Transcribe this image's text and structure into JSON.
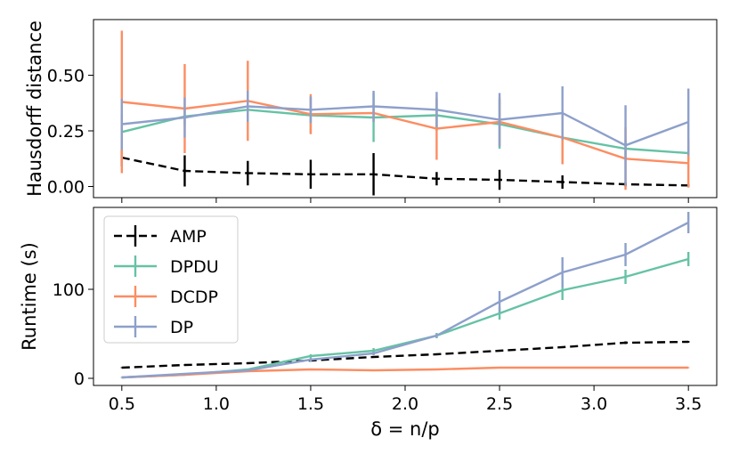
{
  "chart_data": [
    {
      "type": "line",
      "ylabel": "Hausdorff distance",
      "xlabel": "",
      "x": [
        0.5,
        0.833,
        1.167,
        1.5,
        1.833,
        2.167,
        2.5,
        2.833,
        3.167,
        3.5
      ],
      "xlim": [
        0.35,
        3.65
      ],
      "ylim": [
        -0.05,
        0.75
      ],
      "yticks": [
        0.0,
        0.25,
        0.5
      ],
      "ytick_labels": [
        "0.00",
        "0.25",
        "0.50"
      ],
      "series": [
        {
          "name": "AMP",
          "color": "#000000",
          "dash": true,
          "values": [
            0.13,
            0.07,
            0.06,
            0.055,
            0.055,
            0.035,
            0.03,
            0.02,
            0.01,
            0.005
          ],
          "err": [
            0.04,
            0.07,
            0.055,
            0.065,
            0.095,
            0.03,
            0.045,
            0.03,
            0.01,
            0.005
          ]
        },
        {
          "name": "DPDU",
          "color": "#66c2a5",
          "dash": false,
          "values": [
            0.245,
            0.315,
            0.345,
            0.32,
            0.31,
            0.32,
            0.28,
            0.22,
            0.17,
            0.15
          ],
          "err": [
            0.08,
            0.04,
            0.04,
            0.08,
            0.11,
            0.07,
            0.11,
            0.12,
            0.04,
            0.03
          ]
        },
        {
          "name": "DCDP",
          "color": "#fc8d62",
          "dash": false,
          "values": [
            0.38,
            0.35,
            0.385,
            0.325,
            0.33,
            0.26,
            0.29,
            0.22,
            0.125,
            0.105
          ],
          "err": [
            0.32,
            0.2,
            0.18,
            0.09,
            0.04,
            0.14,
            0.11,
            0.12,
            0.14,
            0.11
          ]
        },
        {
          "name": "DP",
          "color": "#8da0cb",
          "dash": false,
          "values": [
            0.28,
            0.31,
            0.36,
            0.345,
            0.36,
            0.345,
            0.3,
            0.33,
            0.185,
            0.29
          ],
          "err": [
            0.115,
            0.09,
            0.07,
            0.06,
            0.07,
            0.08,
            0.12,
            0.12,
            0.18,
            0.15
          ]
        }
      ]
    },
    {
      "type": "line",
      "ylabel": "Runtime (s)",
      "xlabel": "δ = n/p",
      "x": [
        0.5,
        0.833,
        1.167,
        1.5,
        1.833,
        2.167,
        2.5,
        2.833,
        3.167,
        3.5
      ],
      "xlim": [
        0.35,
        3.65
      ],
      "ylim": [
        -8,
        192
      ],
      "xticks": [
        0.5,
        1.0,
        1.5,
        2.0,
        2.5,
        3.0,
        3.5
      ],
      "xtick_labels": [
        "0.5",
        "1.0",
        "1.5",
        "2.0",
        "2.5",
        "3.0",
        "3.5"
      ],
      "yticks": [
        0,
        100
      ],
      "ytick_labels": [
        "0",
        "100"
      ],
      "legend": "upper-left",
      "series": [
        {
          "name": "AMP",
          "color": "#000000",
          "dash": true,
          "values": [
            12,
            15,
            17,
            20,
            24,
            27,
            31,
            35,
            40,
            41
          ],
          "err": [
            0.5,
            0.5,
            0.5,
            0.5,
            0.5,
            0.5,
            0.5,
            1.0,
            1.5,
            1.0
          ]
        },
        {
          "name": "DPDU",
          "color": "#66c2a5",
          "dash": false,
          "values": [
            1,
            4,
            10,
            25,
            31,
            48,
            73,
            99,
            114,
            134
          ],
          "err": [
            0.5,
            0.5,
            1.0,
            2.0,
            3.0,
            3.0,
            7.0,
            11.0,
            8.0,
            8.0
          ]
        },
        {
          "name": "DCDP",
          "color": "#fc8d62",
          "dash": false,
          "values": [
            1,
            4,
            8,
            10,
            9,
            10,
            12,
            12,
            12,
            12
          ],
          "err": [
            0.5,
            0.5,
            0.5,
            0.8,
            0.5,
            0.5,
            0.5,
            1.0,
            0.5,
            0.5
          ]
        },
        {
          "name": "DP",
          "color": "#8da0cb",
          "dash": false,
          "values": [
            1,
            5,
            9,
            21,
            28,
            48,
            86,
            119,
            139,
            175
          ],
          "err": [
            0.5,
            0.5,
            0.5,
            2.0,
            2.0,
            2.0,
            12.0,
            17.0,
            13.0,
            12.0
          ]
        }
      ]
    }
  ]
}
